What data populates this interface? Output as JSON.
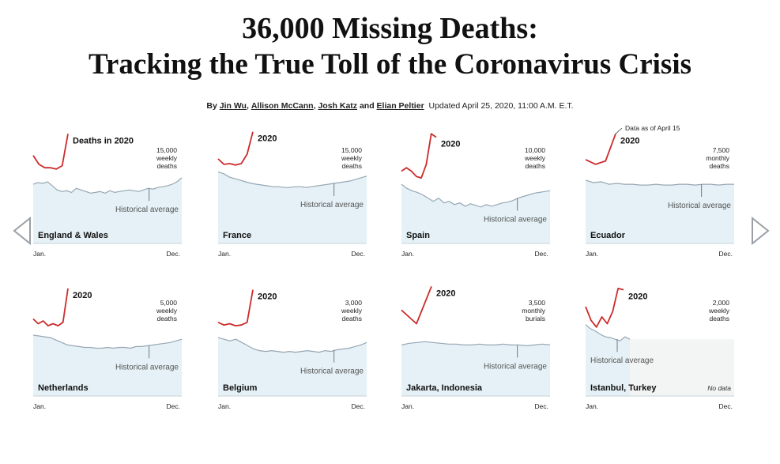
{
  "headline": {
    "line1": "36,000 Missing Deaths:",
    "line2": "Tracking the True Toll of the Coronavirus Crisis"
  },
  "byline": {
    "by": "By",
    "authors": [
      "Jin Wu",
      "Allison McCann",
      "Josh Katz",
      "Elian Peltier"
    ],
    "comma": ",",
    "and": "and",
    "updated": "Updated April 25, 2020, 11:00 A.M. E.T."
  },
  "nav": {
    "prev_icon": "triangle-left-icon",
    "next_icon": "triangle-right-icon"
  },
  "colors": {
    "deaths_2020": "#cc2b2b",
    "historical": "#97a7b4",
    "fill": "#e5f1f6",
    "no_data_fill": "#f3f4f4"
  },
  "axis": {
    "start": "Jan.",
    "end": "Dec."
  },
  "charts": [
    {
      "name": "England & Wales",
      "year_label": "Deaths in 2020",
      "unit_lines": [
        "15,000",
        "weekly",
        "deaths"
      ],
      "hist_label": "Historical average",
      "hist": [
        0.55,
        0.53,
        0.54,
        0.52,
        0.57,
        0.62,
        0.64,
        0.63,
        0.65,
        0.6,
        0.62,
        0.64,
        0.66,
        0.65,
        0.64,
        0.66,
        0.63,
        0.65,
        0.64,
        0.63,
        0.62,
        0.63,
        0.64,
        0.62,
        0.6,
        0.61,
        0.59,
        0.58,
        0.57,
        0.55,
        0.52,
        0.47
      ],
      "deaths": [
        0.37,
        0.5,
        0.55,
        0.55,
        0.57,
        0.52,
        0.05
      ]
    },
    {
      "name": "France",
      "year_label": "2020",
      "unit_lines": [
        "15,000",
        "weekly",
        "deaths"
      ],
      "hist_label": "Historical average",
      "hist": [
        0.4,
        0.42,
        0.46,
        0.48,
        0.5,
        0.52,
        0.54,
        0.55,
        0.56,
        0.57,
        0.58,
        0.58,
        0.59,
        0.59,
        0.58,
        0.58,
        0.59,
        0.58,
        0.57,
        0.56,
        0.55,
        0.54,
        0.53,
        0.52,
        0.51,
        0.49,
        0.47,
        0.45
      ],
      "deaths": [
        0.42,
        0.5,
        0.49,
        0.51,
        0.49,
        0.35,
        0.02
      ]
    },
    {
      "name": "Spain",
      "year_label": "2020",
      "unit_lines": [
        "10,000",
        "weekly",
        "deaths"
      ],
      "hist_label": "Historical average",
      "hist": [
        0.55,
        0.6,
        0.63,
        0.65,
        0.68,
        0.72,
        0.76,
        0.72,
        0.78,
        0.76,
        0.8,
        0.78,
        0.82,
        0.79,
        0.81,
        0.83,
        0.8,
        0.82,
        0.8,
        0.78,
        0.77,
        0.75,
        0.72,
        0.7,
        0.68,
        0.66,
        0.65,
        0.64,
        0.63
      ],
      "deaths": [
        0.6,
        0.55,
        0.6,
        0.68,
        0.7,
        0.5,
        0.05,
        0.1
      ]
    },
    {
      "name": "Ecuador",
      "year_label": "2020",
      "unit_lines": [
        "7,500",
        "monthly",
        "deaths"
      ],
      "hist_label": "Historical average",
      "hist": [
        0.5,
        0.53,
        0.52,
        0.55,
        0.54,
        0.55,
        0.55,
        0.56,
        0.56,
        0.55,
        0.56,
        0.56,
        0.55,
        0.55,
        0.56,
        0.55,
        0.55,
        0.56,
        0.55,
        0.55
      ],
      "deaths": [
        0.43,
        0.5,
        0.45,
        0.05
      ],
      "note": "Data as of April 15"
    },
    {
      "name": "Netherlands",
      "year_label": "2020",
      "unit_lines": [
        "5,000",
        "weekly",
        "deaths"
      ],
      "hist_label": "Historical average",
      "hist": [
        0.53,
        0.54,
        0.55,
        0.56,
        0.59,
        0.62,
        0.65,
        0.66,
        0.67,
        0.68,
        0.68,
        0.69,
        0.69,
        0.68,
        0.69,
        0.68,
        0.68,
        0.69,
        0.67,
        0.67,
        0.66,
        0.65,
        0.64,
        0.63,
        0.62,
        0.6,
        0.58
      ],
      "deaths": [
        0.53,
        0.6,
        0.56,
        0.63,
        0.6,
        0.63,
        0.58,
        0.08
      ]
    },
    {
      "name": "Belgium",
      "year_label": "2020",
      "unit_lines": [
        "3,000",
        "weekly",
        "deaths"
      ],
      "hist_label": "Historical average",
      "hist": [
        0.56,
        0.58,
        0.6,
        0.58,
        0.62,
        0.66,
        0.7,
        0.72,
        0.73,
        0.72,
        0.73,
        0.74,
        0.73,
        0.74,
        0.73,
        0.72,
        0.73,
        0.74,
        0.72,
        0.73,
        0.71,
        0.7,
        0.69,
        0.67,
        0.65,
        0.62
      ],
      "deaths": [
        0.58,
        0.62,
        0.6,
        0.63,
        0.62,
        0.58,
        0.1
      ]
    },
    {
      "name": "Jakarta, Indonesia",
      "year_label": "2020",
      "unit_lines": [
        "3,500",
        "monthly",
        "burials"
      ],
      "hist_label": "Historical average",
      "hist": [
        0.65,
        0.63,
        0.62,
        0.61,
        0.62,
        0.63,
        0.64,
        0.64,
        0.65,
        0.65,
        0.64,
        0.65,
        0.65,
        0.64,
        0.65,
        0.65,
        0.66,
        0.65,
        0.64,
        0.65
      ],
      "deaths": [
        0.4,
        0.6,
        0.05
      ]
    },
    {
      "name": "Istanbul, Turkey",
      "year_label": "2020",
      "unit_lines": [
        "2,000",
        "weekly",
        "deaths"
      ],
      "hist_label": "Historical average",
      "hist": [
        0.4,
        0.45,
        0.48,
        0.52,
        0.55,
        0.56,
        0.58,
        0.6,
        0.55,
        0.58
      ],
      "deaths": [
        0.35,
        0.55,
        0.65,
        0.5,
        0.6,
        0.42,
        0.08,
        0.1
      ],
      "no_data": "No data"
    }
  ]
}
